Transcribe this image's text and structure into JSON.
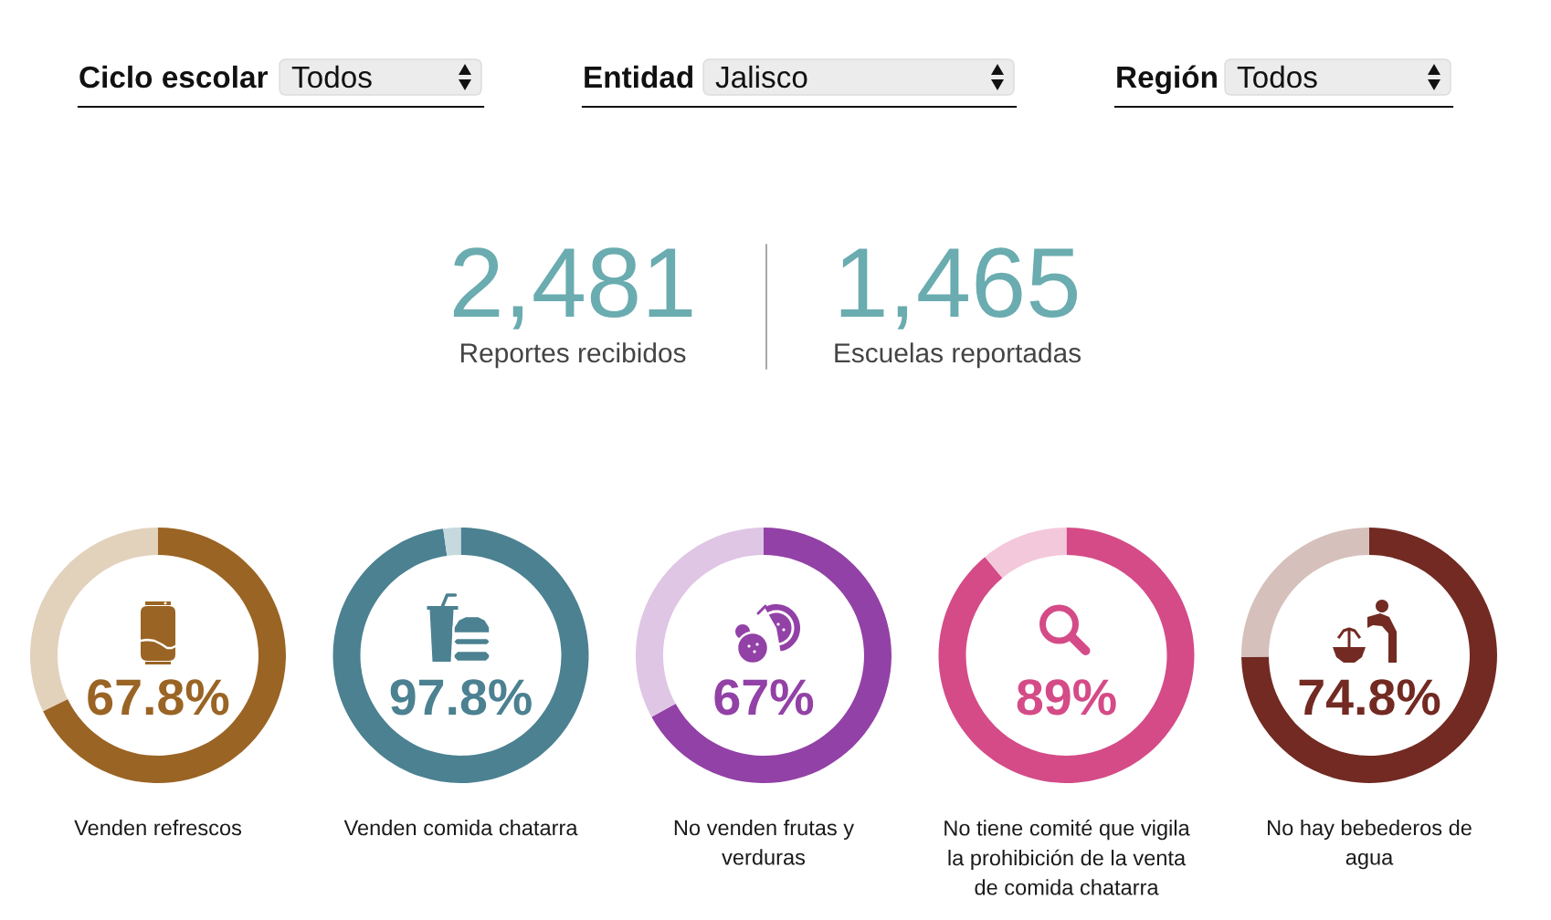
{
  "chart_data": [
    {
      "type": "other",
      "annotations": [
        "Ciclo escolar",
        "Todos",
        "Entidad",
        "Jalisco",
        "Región",
        "Todos",
        "2,481",
        "Reportes recibidos",
        "1,465",
        "Escuelas reportadas"
      ]
    },
    {
      "type": "donut",
      "title": "Venden refrescos",
      "categories": [
        null,
        null
      ],
      "values": [
        67.8,
        32.2
      ],
      "colors": [
        "#9a6424",
        "#e2d2bc"
      ],
      "annotations": [
        "67.8%"
      ]
    },
    {
      "type": "donut",
      "title": "Venden comida chatarra",
      "categories": [
        null,
        null
      ],
      "values": [
        97.8,
        2.2
      ],
      "colors": [
        "#4b8191",
        "#c6d9de"
      ],
      "annotations": [
        "97.8%"
      ]
    },
    {
      "type": "donut",
      "title": "No venden frutas y verduras",
      "categories": [
        null,
        null
      ],
      "values": [
        67,
        33
      ],
      "colors": [
        "#9241a6",
        "#dfc6e5"
      ],
      "annotations": [
        "67%"
      ]
    },
    {
      "type": "donut",
      "title": "No tiene comité que vigila la prohibición de la venta de comida chatarra",
      "categories": [
        null,
        null
      ],
      "values": [
        89,
        11
      ],
      "colors": [
        "#d44b87",
        "#f3c8da"
      ],
      "annotations": [
        "89%"
      ]
    },
    {
      "type": "donut",
      "title": "No hay bebederos de agua",
      "categories": [
        null,
        null
      ],
      "values": [
        74.8,
        25.2
      ],
      "colors": [
        "#722a22",
        "#d6c0bb"
      ],
      "annotations": [
        "74.8%"
      ]
    }
  ]
}
